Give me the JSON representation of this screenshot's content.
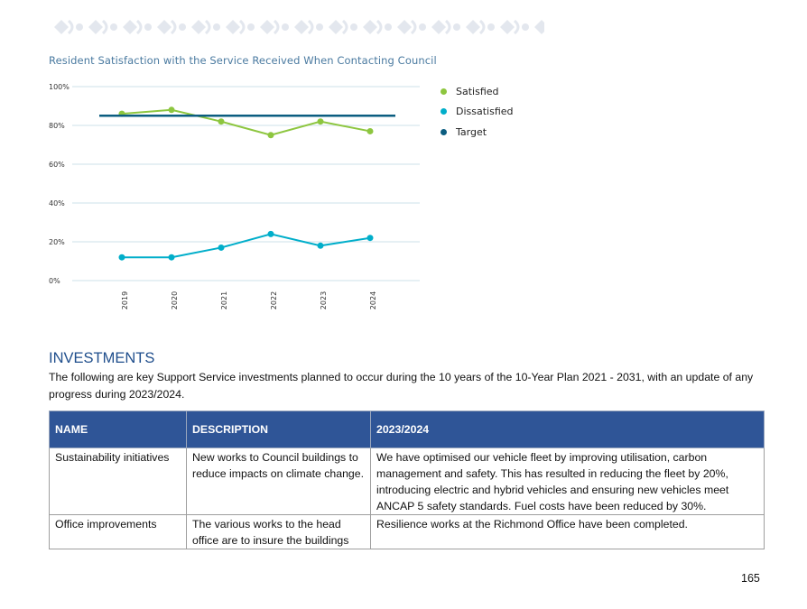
{
  "chart": {
    "title": "Resident Satisfaction with the Service Received When Contacting Council",
    "legend": [
      {
        "label": "Satisfied",
        "color": "#8dc63f"
      },
      {
        "label": "Dissatisfied",
        "color": "#00aeca"
      },
      {
        "label": "Target",
        "color": "#0b5d80"
      }
    ]
  },
  "chart_data": {
    "type": "line",
    "title": "Resident Satisfaction with the Service Received When Contacting Council",
    "x": [
      "2019",
      "2020",
      "2021",
      "2022",
      "2023",
      "2024"
    ],
    "series": [
      {
        "name": "Satisfied",
        "values": [
          86,
          88,
          82,
          75,
          82,
          77
        ],
        "color": "#8dc63f"
      },
      {
        "name": "Dissatisfied",
        "values": [
          12,
          12,
          17,
          24,
          18,
          22
        ],
        "color": "#00aeca"
      },
      {
        "name": "Target",
        "values": [
          85,
          85,
          85,
          85,
          85,
          85
        ],
        "color": "#0b5d80"
      }
    ],
    "yticks": [
      "0%",
      "20%",
      "40%",
      "60%",
      "80%",
      "100%"
    ],
    "ylim": [
      0,
      100
    ],
    "grid": true,
    "legend_position": "right"
  },
  "section": {
    "heading": "INVESTMENTS",
    "intro": "The following are key Support Service investments planned to occur during the 10 years of the 10-Year Plan 2021 - 2031, with an update of any progress during 2023/2024."
  },
  "table": {
    "headers": [
      "NAME",
      "DESCRIPTION",
      "2023/2024"
    ],
    "rows": [
      {
        "name": "Sustainability initiatives",
        "description": "New works to Council buildings to reduce impacts on climate change.",
        "update": "We have optimised our vehicle fleet by improving utilisation, carbon management and safety.  This has resulted in reducing the fleet by 20%, introducing electric and hybrid vehicles and ensuring new vehicles meet ANCAP 5 safety standards.  Fuel costs have been reduced by 30%."
      },
      {
        "name": "Office improvements",
        "description": "The various works to the head office are to insure the buildings",
        "update": "Resilience works at the Richmond Office have been completed."
      }
    ]
  },
  "page_number": "165"
}
